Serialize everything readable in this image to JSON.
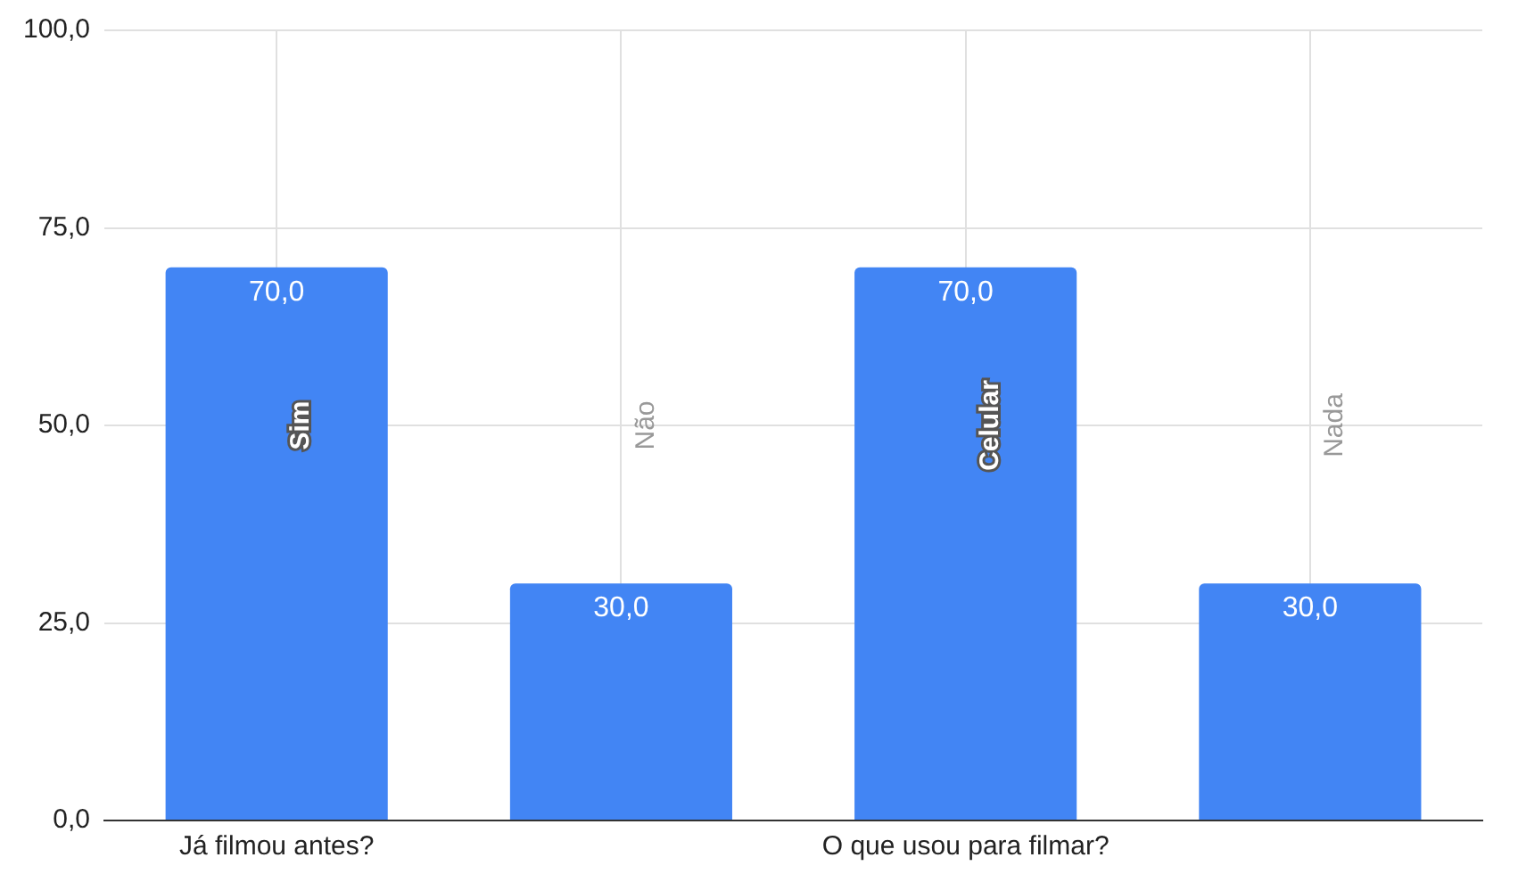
{
  "chart_data": {
    "type": "bar",
    "categories": [
      "Já filmou antes?",
      null,
      "O que usou para filmar?",
      null
    ],
    "values": [
      70,
      30,
      70,
      30
    ],
    "color": "#4285f4",
    "value_labels": [
      "70,0",
      "30,0",
      "70,0",
      "30,0"
    ],
    "annotations": [
      "Sim",
      "Não",
      "Celular",
      "Nada"
    ],
    "ylim": [
      0,
      100
    ],
    "yticks": [
      {
        "value": 0,
        "label": "0,0"
      },
      {
        "value": 25,
        "label": "25,0"
      },
      {
        "value": 50,
        "label": "50,0"
      },
      {
        "value": 75,
        "label": "75,0"
      },
      {
        "value": 100,
        "label": "100,0"
      }
    ],
    "grid": true
  }
}
